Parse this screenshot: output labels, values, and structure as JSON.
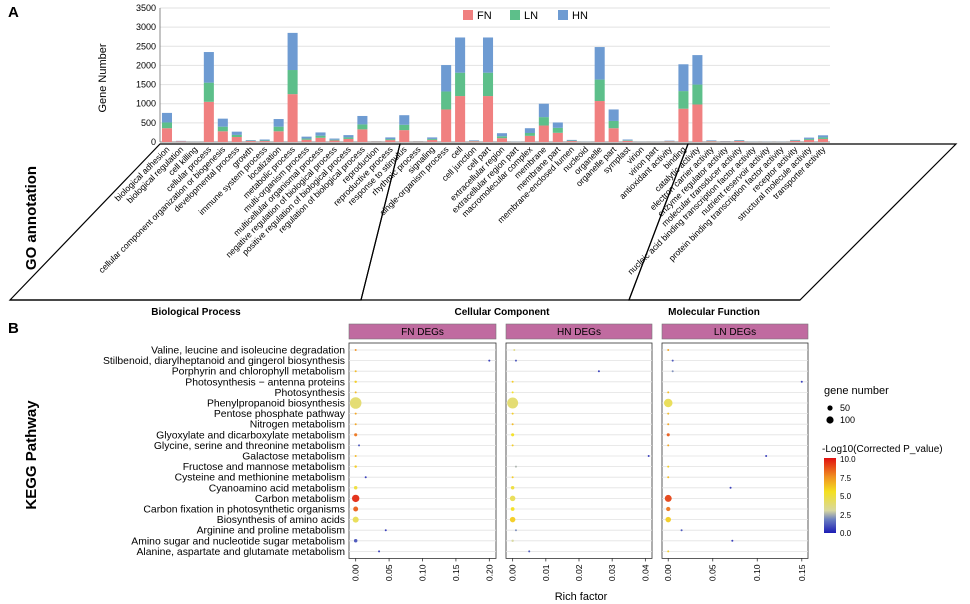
{
  "panel_a": {
    "letter": "A",
    "side_title": "GO annotation",
    "group_labels": [
      "Biological Process",
      "Cellular Component",
      "Molecular Function"
    ]
  },
  "panel_b": {
    "letter": "B",
    "side_title": "KEGG Pathway",
    "legend": {
      "size_title": "gene number",
      "size_labels": [
        "50",
        "100"
      ],
      "color_title": "-Log10(Corrected P_value)",
      "color_ticks": [
        "10.0",
        "7.5",
        "5.0",
        "2.5",
        "0.0"
      ]
    }
  },
  "colors": {
    "FN": "#F08080",
    "LN": "#5DBF8A",
    "HN": "#6E9BD2",
    "facet_strip": "#C06BA0",
    "grid": "#E2E2E2"
  },
  "chart_data": [
    {
      "type": "bar",
      "stacked": true,
      "title": "",
      "ylabel": "Gene Number",
      "xlabel": "",
      "ylim": [
        0,
        3500
      ],
      "yticks": [
        0,
        500,
        1000,
        1500,
        2000,
        2500,
        3000,
        3500
      ],
      "categories": [
        "biological adhesion",
        "biological regulation",
        "cell killing",
        "cellular process",
        "cellular component organization or biogenesis",
        "developmental process",
        "growth",
        "immune system process",
        "localization",
        "metabolic process",
        "multi-organism process",
        "multicellular organismal process",
        "negative regulation of biological process",
        "positive regulation of biological process",
        "regulation of biological process",
        "reproduction",
        "reproductive process",
        "response to stimulus",
        "rhythmic process",
        "signaling",
        "single-organism process",
        "cell",
        "cell junction",
        "cell part",
        "extracellular region",
        "extracellular region part",
        "macromolecular complex",
        "membrane",
        "membrane part",
        "membrane-enclosed lumen",
        "nucleoid",
        "organelle",
        "organelle part",
        "symplast",
        "virion",
        "virion part",
        "antioxidant activity",
        "binding",
        "catalytic activity",
        "electron carrier activity",
        "enzyme regulator activity",
        "molecular transducer activity",
        "nucleic acid binding transcription factor activity",
        "nutrient reservoir activity",
        "protein binding transcription factor activity",
        "receptor activity",
        "structural molecule activity",
        "transporter activity"
      ],
      "groups": [
        {
          "name": "Biological Process",
          "start": 0,
          "count": 21
        },
        {
          "name": "Cellular Component",
          "start": 21,
          "count": 15
        },
        {
          "name": "Molecular Function",
          "start": 36,
          "count": 12
        }
      ],
      "series": [
        {
          "name": "FN",
          "values": [
            360,
            15,
            3,
            1050,
            280,
            130,
            25,
            25,
            280,
            1250,
            60,
            110,
            40,
            80,
            330,
            10,
            50,
            310,
            10,
            55,
            850,
            1200,
            20,
            1200,
            100,
            5,
            160,
            430,
            240,
            25,
            5,
            1070,
            360,
            30,
            3,
            3,
            15,
            870,
            980,
            20,
            10,
            25,
            5,
            5,
            5,
            30,
            55,
            80
          ]
        },
        {
          "name": "LN",
          "values": [
            150,
            5,
            2,
            500,
            120,
            55,
            10,
            15,
            120,
            630,
            30,
            55,
            20,
            40,
            130,
            5,
            25,
            140,
            5,
            25,
            470,
            610,
            10,
            610,
            50,
            3,
            75,
            220,
            130,
            12,
            3,
            560,
            190,
            15,
            2,
            2,
            8,
            460,
            520,
            10,
            5,
            10,
            3,
            3,
            3,
            10,
            25,
            40
          ]
        },
        {
          "name": "HN",
          "values": [
            250,
            10,
            3,
            800,
            210,
            85,
            15,
            25,
            200,
            970,
            50,
            85,
            30,
            60,
            220,
            5,
            45,
            250,
            5,
            40,
            690,
            920,
            15,
            920,
            80,
            5,
            125,
            350,
            140,
            18,
            5,
            850,
            300,
            20,
            3,
            3,
            12,
            700,
            770,
            15,
            8,
            15,
            5,
            5,
            5,
            15,
            35,
            55
          ]
        }
      ]
    },
    {
      "type": "scatter",
      "title": "",
      "xlabel": "Rich factor",
      "ylabel": "",
      "pathways": [
        "Valine, leucine and isoleucine degradation",
        "Stilbenoid, diarylheptanoid and gingerol biosynthesis",
        "Porphyrin and chlorophyll metabolism",
        "Photosynthesis − antenna proteins",
        "Photosynthesis",
        "Phenylpropanoid biosynthesis",
        "Pentose phosphate pathway",
        "Nitrogen metabolism",
        "Glyoxylate and dicarboxylate metabolism",
        "Glycine, serine and threonine metabolism",
        "Galactose metabolism",
        "Fructose and mannose metabolism",
        "Cysteine and methionine metabolism",
        "Cyanoamino acid metabolism",
        "Carbon metabolism",
        "Carbon fixation in photosynthetic organisms",
        "Biosynthesis of amino acids",
        "Arginine and proline metabolism",
        "Amino sugar and nucleotide sugar metabolism",
        "Alanine, aspartate and glutamate metabolism"
      ],
      "facets": [
        {
          "name": "FN DEGs",
          "xlim": [
            -0.01,
            0.21
          ],
          "xticks": [
            "0.00",
            "0.05",
            "0.10",
            "0.15",
            "0.20"
          ],
          "tick_values": [
            0,
            0.05,
            0.1,
            0.15,
            0.2
          ],
          "points": [
            {
              "x": 0.0,
              "size": 3,
              "p": 7.5
            },
            {
              "x": 0.2,
              "size": 1,
              "p": 0.5
            },
            {
              "x": 0.0,
              "size": 3,
              "p": 6.5
            },
            {
              "x": 0.0,
              "size": 5,
              "p": 6.0
            },
            {
              "x": 0.0,
              "size": 3,
              "p": 6.5
            },
            {
              "x": 0.0,
              "size": 110,
              "p": 4.0
            },
            {
              "x": 0.0,
              "size": 3,
              "p": 7.0
            },
            {
              "x": 0.0,
              "size": 3,
              "p": 7.0
            },
            {
              "x": 0.0,
              "size": 8,
              "p": 8.0
            },
            {
              "x": 0.005,
              "size": 2,
              "p": 1.0
            },
            {
              "x": 0.0,
              "size": 3,
              "p": 6.5
            },
            {
              "x": 0.0,
              "size": 5,
              "p": 6.0
            },
            {
              "x": 0.015,
              "size": 2,
              "p": 0.5
            },
            {
              "x": 0.0,
              "size": 10,
              "p": 5.0
            },
            {
              "x": 0.0,
              "size": 45,
              "p": 9.5
            },
            {
              "x": 0.0,
              "size": 20,
              "p": 8.5
            },
            {
              "x": 0.0,
              "size": 30,
              "p": 4.5
            },
            {
              "x": 0.045,
              "size": 1,
              "p": 0.5
            },
            {
              "x": 0.0,
              "size": 10,
              "p": 1.0
            },
            {
              "x": 0.035,
              "size": 1,
              "p": 0.5
            }
          ]
        },
        {
          "name": "HN DEGs",
          "xlim": [
            -0.002,
            0.042
          ],
          "xticks": [
            "0.00",
            "0.01",
            "0.02",
            "0.03",
            "0.04"
          ],
          "tick_values": [
            0,
            0.01,
            0.02,
            0.03,
            0.04
          ],
          "points": [
            {
              "x": 0.0005,
              "size": 2,
              "p": 3.5
            },
            {
              "x": 0.001,
              "size": 2,
              "p": 1.0
            },
            {
              "x": 0.026,
              "size": 1,
              "p": 0.5
            },
            {
              "x": 0.0,
              "size": 3,
              "p": 6.0
            },
            {
              "x": 0.0,
              "size": 3,
              "p": 5.5
            },
            {
              "x": 0.0,
              "size": 100,
              "p": 4.0
            },
            {
              "x": 0.0,
              "size": 3,
              "p": 6.0
            },
            {
              "x": 0.0,
              "size": 3,
              "p": 6.5
            },
            {
              "x": 0.0,
              "size": 8,
              "p": 5.5
            },
            {
              "x": 0.0,
              "size": 3,
              "p": 6.0
            },
            {
              "x": 0.041,
              "size": 1,
              "p": 0.5
            },
            {
              "x": 0.001,
              "size": 2,
              "p": 2.5
            },
            {
              "x": 0.0,
              "size": 3,
              "p": 6.0
            },
            {
              "x": 0.0,
              "size": 10,
              "p": 5.0
            },
            {
              "x": 0.0,
              "size": 25,
              "p": 4.5
            },
            {
              "x": 0.0,
              "size": 12,
              "p": 5.5
            },
            {
              "x": 0.0,
              "size": 25,
              "p": 6.0
            },
            {
              "x": 0.001,
              "size": 2,
              "p": 2.0
            },
            {
              "x": 0.0,
              "size": 5,
              "p": 3.0
            },
            {
              "x": 0.005,
              "size": 1,
              "p": 1.0
            }
          ]
        },
        {
          "name": "LN DEGs",
          "xlim": [
            -0.007,
            0.157
          ],
          "xticks": [
            "0.00",
            "0.05",
            "0.10",
            "0.15"
          ],
          "tick_values": [
            0,
            0.05,
            0.1,
            0.15
          ],
          "points": [
            {
              "x": 0.0,
              "size": 3,
              "p": 7.0
            },
            {
              "x": 0.005,
              "size": 2,
              "p": 1.0
            },
            {
              "x": 0.005,
              "size": 2,
              "p": 2.0
            },
            {
              "x": 0.15,
              "size": 1,
              "p": 0.5
            },
            {
              "x": 0.0,
              "size": 3,
              "p": 6.5
            },
            {
              "x": 0.0,
              "size": 60,
              "p": 4.5
            },
            {
              "x": 0.0,
              "size": 3,
              "p": 6.5
            },
            {
              "x": 0.0,
              "size": 3,
              "p": 7.0
            },
            {
              "x": 0.0,
              "size": 8,
              "p": 8.5
            },
            {
              "x": 0.0,
              "size": 3,
              "p": 7.0
            },
            {
              "x": 0.11,
              "size": 1,
              "p": 0.5
            },
            {
              "x": 0.0,
              "size": 3,
              "p": 6.0
            },
            {
              "x": 0.0,
              "size": 3,
              "p": 6.5
            },
            {
              "x": 0.07,
              "size": 1,
              "p": 0.5
            },
            {
              "x": 0.0,
              "size": 40,
              "p": 9.0
            },
            {
              "x": 0.0,
              "size": 15,
              "p": 8.0
            },
            {
              "x": 0.0,
              "size": 25,
              "p": 6.0
            },
            {
              "x": 0.015,
              "size": 1,
              "p": 1.0
            },
            {
              "x": 0.072,
              "size": 1,
              "p": 0.5
            },
            {
              "x": 0.0,
              "size": 3,
              "p": 6.0
            }
          ]
        }
      ]
    }
  ]
}
